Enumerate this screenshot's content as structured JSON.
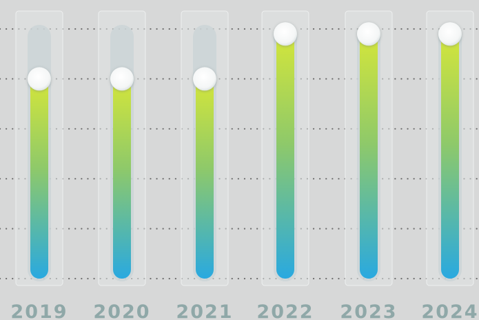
{
  "chart_data": {
    "type": "bar",
    "categories": [
      "2019",
      "2020",
      "2021",
      "2022",
      "2023",
      "2024"
    ],
    "values": [
      80,
      80,
      80,
      98,
      98,
      98
    ],
    "ylim": [
      0,
      100
    ],
    "grid": true,
    "gridlines_at": [
      0,
      20,
      40,
      60,
      80,
      100
    ],
    "colors": {
      "background": "#d7d8d8",
      "bar_gradient_top": "#d4e63a",
      "bar_gradient_mid": "#8ec96a",
      "bar_gradient_bottom": "#29a9e0",
      "track": "#c9d3d6",
      "knob": "#ffffff",
      "label": "#8fa8a8",
      "grid_dots": "#6e6e6e"
    }
  }
}
